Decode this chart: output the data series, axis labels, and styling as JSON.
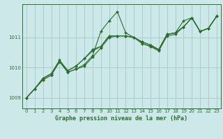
{
  "background_color": "#cce8e8",
  "grid_color": "#aacccc",
  "line_color": "#2d6e2d",
  "marker_color": "#2d6e2d",
  "title": "Graphe pression niveau de la mer (hPa)",
  "xlim": [
    -0.5,
    23.5
  ],
  "ylim": [
    1008.65,
    1012.1
  ],
  "yticks": [
    1009,
    1010,
    1011
  ],
  "xticks": [
    0,
    1,
    2,
    3,
    4,
    5,
    6,
    7,
    8,
    9,
    10,
    11,
    12,
    13,
    14,
    15,
    16,
    17,
    18,
    19,
    20,
    21,
    22,
    23
  ],
  "series": [
    [
      1009.0,
      1009.3,
      1009.6,
      1009.75,
      1010.2,
      1009.85,
      1009.95,
      1010.05,
      1010.35,
      1010.65,
      1011.0,
      1011.05,
      1011.05,
      1011.0,
      1010.8,
      1010.7,
      1010.55,
      1011.05,
      1011.1,
      1011.35,
      1011.65,
      1011.2,
      1011.3,
      1011.7
    ],
    [
      1009.0,
      1009.3,
      1009.6,
      1009.75,
      1010.2,
      1009.85,
      1009.95,
      1010.1,
      1010.4,
      1011.2,
      1011.55,
      1011.85,
      1011.15,
      1011.0,
      1010.8,
      1010.7,
      1010.6,
      1011.1,
      1011.15,
      1011.55,
      1011.65,
      1011.2,
      1011.3,
      1011.7
    ],
    [
      1009.0,
      1009.3,
      1009.65,
      1009.8,
      1010.2,
      1009.9,
      1010.05,
      1010.3,
      1010.55,
      1010.7,
      1011.05,
      1011.05,
      1011.05,
      1011.0,
      1010.85,
      1010.75,
      1010.6,
      1011.1,
      1011.15,
      1011.35,
      1011.65,
      1011.2,
      1011.3,
      1011.7
    ],
    [
      1009.0,
      1009.3,
      1009.65,
      1009.8,
      1010.25,
      1009.9,
      1010.05,
      1010.3,
      1010.6,
      1010.7,
      1011.05,
      1011.05,
      1011.05,
      1011.0,
      1010.85,
      1010.75,
      1010.6,
      1011.1,
      1011.15,
      1011.35,
      1011.65,
      1011.2,
      1011.3,
      1011.7
    ]
  ]
}
